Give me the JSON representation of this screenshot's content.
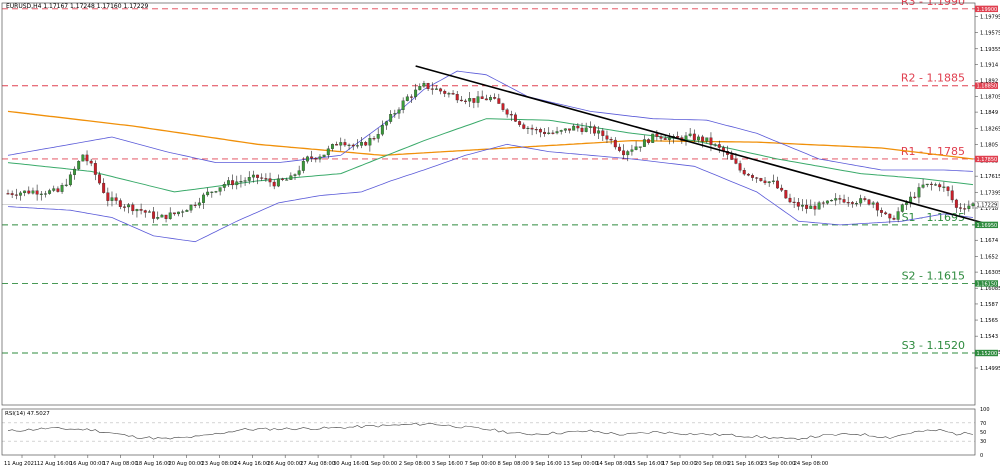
{
  "header": {
    "symbol_info": "EURUSD,H4  1.17167 1.17248 1.17160 1.17229",
    "rsi_info": "RSI(14) 47.5027"
  },
  "colors": {
    "bull": "#3a9a3a",
    "bear": "#c8202a",
    "resistance": "#e04050",
    "support": "#2e8b3e",
    "ma_long": "#f0900a",
    "ma_mid": "#3aaa6a",
    "bands": "#5a5ad8",
    "trend": "#000000"
  },
  "chart_data": {
    "type": "candlestick",
    "ylim": [
      1.1449,
      1.1998
    ],
    "y_ticks": [
      1.2001,
      1.19795,
      1.19575,
      1.19355,
      1.1914,
      1.1892,
      1.18705,
      1.1849,
      1.18265,
      1.1805,
      1.1783,
      1.17615,
      1.17395,
      1.1718,
      1.1696,
      1.1674,
      1.1652,
      1.16305,
      1.16085,
      1.1587,
      1.1565,
      1.1543,
      1.15215,
      1.14995
    ],
    "x_labels": [
      "11 Aug 2021",
      "12 Aug 16:00",
      "16 Aug 00:00",
      "17 Aug 08:00",
      "18 Aug 16:00",
      "20 Aug 00:00",
      "23 Aug 08:00",
      "24 Aug 16:00",
      "26 Aug 00:00",
      "27 Aug 08:00",
      "30 Aug 16:00",
      "1 Sep 00:00",
      "2 Sep 08:00",
      "3 Sep 16:00",
      "7 Sep 00:00",
      "8 Sep 08:00",
      "9 Sep 16:00",
      "13 Sep 00:00",
      "14 Sep 08:00",
      "15 Sep 16:00",
      "17 Sep 00:00",
      "20 Sep 08:00",
      "21 Sep 16:00",
      "23 Sep 00:00",
      "24 Sep 08:00"
    ],
    "levels": [
      {
        "label": "R3 - 1.1990",
        "price": 1.199,
        "tag": "1.19900",
        "kind": "resistance"
      },
      {
        "label": "R2 - 1.1885",
        "price": 1.1885,
        "tag": "1.18850",
        "kind": "resistance"
      },
      {
        "label": "R1 - 1.1785",
        "price": 1.1785,
        "tag": "1.17850",
        "kind": "resistance"
      },
      {
        "label": "S1 - 1.1695",
        "price": 1.1695,
        "tag": "1.16950",
        "kind": "support"
      },
      {
        "label": "S2 - 1.1615",
        "price": 1.1615,
        "tag": "1.16150",
        "kind": "support"
      },
      {
        "label": "S3 - 1.1520",
        "price": 1.152,
        "tag": "1.15200",
        "kind": "support"
      }
    ],
    "current_price": {
      "price": 1.17229,
      "tag": "1.17229"
    },
    "trendline": {
      "start_price": 1.1912,
      "end_price": 1.1697
    },
    "close_anchors": [
      [
        0,
        1.1738
      ],
      [
        6,
        1.1741
      ],
      [
        12,
        1.174
      ],
      [
        15,
        1.176
      ],
      [
        18,
        1.1791
      ],
      [
        20,
        1.1775
      ],
      [
        24,
        1.173
      ],
      [
        28,
        1.1722
      ],
      [
        32,
        1.1715
      ],
      [
        36,
        1.1704
      ],
      [
        40,
        1.171
      ],
      [
        44,
        1.1721
      ],
      [
        48,
        1.1738
      ],
      [
        52,
        1.1751
      ],
      [
        56,
        1.1755
      ],
      [
        60,
        1.176
      ],
      [
        64,
        1.1752
      ],
      [
        68,
        1.1758
      ],
      [
        72,
        1.1785
      ],
      [
        76,
        1.1792
      ],
      [
        80,
        1.1811
      ],
      [
        84,
        1.18
      ],
      [
        88,
        1.1815
      ],
      [
        92,
        1.1842
      ],
      [
        96,
        1.1869
      ],
      [
        100,
        1.1885
      ],
      [
        104,
        1.1878
      ],
      [
        108,
        1.187
      ],
      [
        112,
        1.1865
      ],
      [
        116,
        1.1868
      ],
      [
        120,
        1.185
      ],
      [
        124,
        1.183
      ],
      [
        128,
        1.1822
      ],
      [
        132,
        1.182
      ],
      [
        136,
        1.1828
      ],
      [
        140,
        1.1825
      ],
      [
        144,
        1.1815
      ],
      [
        148,
        1.1795
      ],
      [
        152,
        1.1805
      ],
      [
        156,
        1.1818
      ],
      [
        160,
        1.1812
      ],
      [
        164,
        1.1815
      ],
      [
        168,
        1.181
      ],
      [
        172,
        1.1795
      ],
      [
        176,
        1.177
      ],
      [
        180,
        1.176
      ],
      [
        184,
        1.1752
      ],
      [
        188,
        1.1725
      ],
      [
        192,
        1.1718
      ],
      [
        196,
        1.1722
      ],
      [
        200,
        1.173
      ],
      [
        204,
        1.1728
      ],
      [
        208,
        1.1726
      ],
      [
        212,
        1.17
      ],
      [
        216,
        1.1725
      ],
      [
        220,
        1.1748
      ],
      [
        224,
        1.175
      ],
      [
        226,
        1.174
      ],
      [
        228,
        1.1718
      ],
      [
        232,
        1.1723
      ]
    ],
    "indicators": {
      "ma_long": [
        [
          0,
          1.185
        ],
        [
          30,
          1.183
        ],
        [
          60,
          1.1805
        ],
        [
          90,
          1.179
        ],
        [
          120,
          1.18
        ],
        [
          150,
          1.181
        ],
        [
          180,
          1.1808
        ],
        [
          210,
          1.18
        ],
        [
          232,
          1.1785
        ]
      ],
      "ma_mid": [
        [
          0,
          1.178
        ],
        [
          20,
          1.1768
        ],
        [
          40,
          1.174
        ],
        [
          60,
          1.1755
        ],
        [
          80,
          1.1765
        ],
        [
          100,
          1.181
        ],
        [
          115,
          1.184
        ],
        [
          130,
          1.1838
        ],
        [
          150,
          1.182
        ],
        [
          165,
          1.181
        ],
        [
          185,
          1.1785
        ],
        [
          205,
          1.1765
        ],
        [
          220,
          1.1758
        ],
        [
          232,
          1.175
        ]
      ],
      "band_upper": [
        [
          0,
          1.179
        ],
        [
          15,
          1.1805
        ],
        [
          25,
          1.1815
        ],
        [
          38,
          1.1795
        ],
        [
          50,
          1.178
        ],
        [
          65,
          1.178
        ],
        [
          80,
          1.179
        ],
        [
          92,
          1.184
        ],
        [
          100,
          1.188
        ],
        [
          108,
          1.1905
        ],
        [
          115,
          1.19
        ],
        [
          125,
          1.187
        ],
        [
          140,
          1.185
        ],
        [
          155,
          1.184
        ],
        [
          168,
          1.1838
        ],
        [
          180,
          1.182
        ],
        [
          195,
          1.1785
        ],
        [
          210,
          1.177
        ],
        [
          225,
          1.177
        ],
        [
          232,
          1.1768
        ]
      ],
      "band_lower": [
        [
          0,
          1.172
        ],
        [
          15,
          1.1715
        ],
        [
          25,
          1.1705
        ],
        [
          35,
          1.168
        ],
        [
          45,
          1.1672
        ],
        [
          55,
          1.17
        ],
        [
          65,
          1.1725
        ],
        [
          75,
          1.1735
        ],
        [
          85,
          1.174
        ],
        [
          92,
          1.1755
        ],
        [
          100,
          1.177
        ],
        [
          110,
          1.179
        ],
        [
          120,
          1.1805
        ],
        [
          130,
          1.1795
        ],
        [
          140,
          1.179
        ],
        [
          150,
          1.1785
        ],
        [
          165,
          1.1775
        ],
        [
          180,
          1.174
        ],
        [
          190,
          1.17
        ],
        [
          200,
          1.1695
        ],
        [
          215,
          1.17
        ],
        [
          225,
          1.171
        ],
        [
          232,
          1.1705
        ]
      ]
    },
    "rsi": {
      "ylim": [
        0,
        100
      ],
      "y_ticks": [
        100,
        70,
        50,
        30,
        0
      ],
      "series": [
        [
          0,
          52
        ],
        [
          10,
          58
        ],
        [
          20,
          55
        ],
        [
          30,
          40
        ],
        [
          38,
          35
        ],
        [
          46,
          40
        ],
        [
          56,
          55
        ],
        [
          66,
          57
        ],
        [
          76,
          58
        ],
        [
          86,
          62
        ],
        [
          96,
          66
        ],
        [
          102,
          68
        ],
        [
          108,
          62
        ],
        [
          116,
          55
        ],
        [
          124,
          45
        ],
        [
          132,
          48
        ],
        [
          140,
          52
        ],
        [
          148,
          44
        ],
        [
          156,
          50
        ],
        [
          164,
          46
        ],
        [
          172,
          44
        ],
        [
          180,
          40
        ],
        [
          188,
          34
        ],
        [
          196,
          42
        ],
        [
          204,
          46
        ],
        [
          212,
          38
        ],
        [
          218,
          50
        ],
        [
          224,
          54
        ],
        [
          228,
          46
        ],
        [
          232,
          47.5
        ]
      ]
    }
  }
}
